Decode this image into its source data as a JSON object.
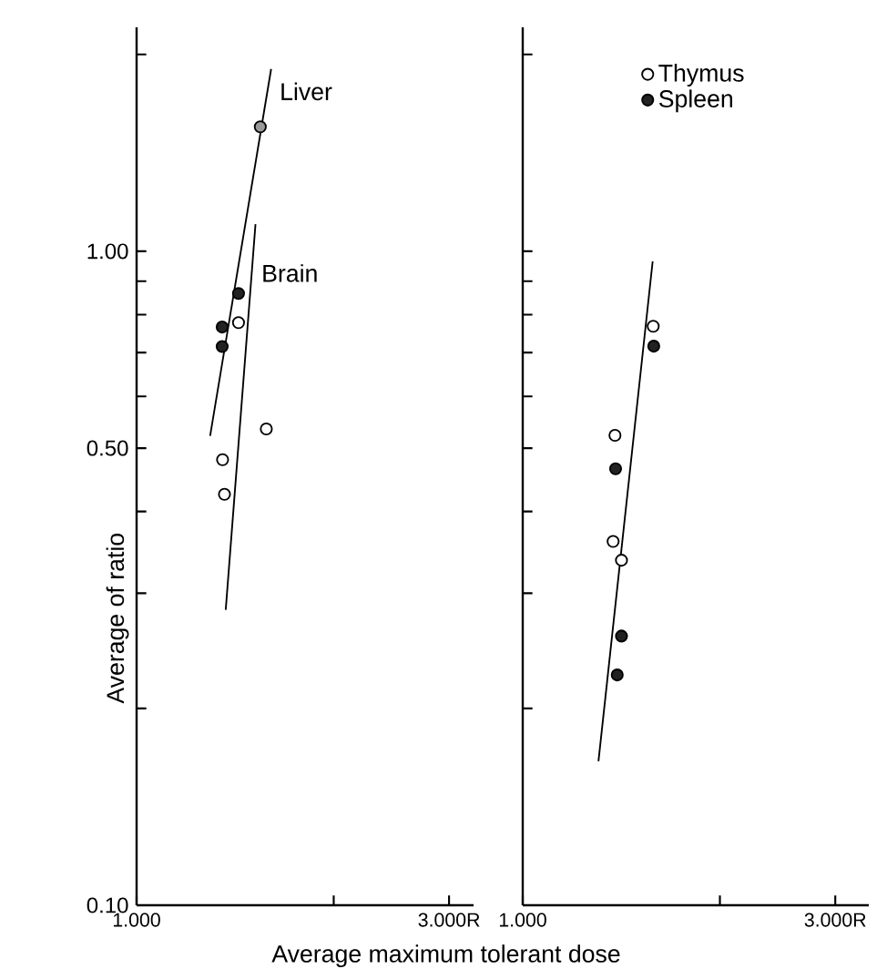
{
  "chart_data": [
    {
      "type": "scatter",
      "log": "xy",
      "xlabel": "Average maximum tolerant dose",
      "ylabel": "Average of ratio",
      "xlim": [
        1.0,
        3.27
      ],
      "ylim": [
        0.1,
        2.2
      ],
      "xticks": [
        {
          "value": 1,
          "label": "1.000"
        },
        {
          "value": 2,
          "label": null
        },
        {
          "value": 3,
          "label": "3.000R"
        }
      ],
      "yticks": [
        {
          "value": 0.1,
          "label": "0.10"
        },
        {
          "value": 0.2,
          "label": null
        },
        {
          "value": 0.3,
          "label": null
        },
        {
          "value": 0.4,
          "label": null
        },
        {
          "value": 0.5,
          "label": "0.50"
        },
        {
          "value": 0.6,
          "label": null
        },
        {
          "value": 0.7,
          "label": null
        },
        {
          "value": 0.8,
          "label": null
        },
        {
          "value": 0.9,
          "label": null
        },
        {
          "value": 1.0,
          "label": "1.00"
        },
        {
          "value": 2.0,
          "label": null
        }
      ],
      "series": [
        {
          "color": "#ffffff",
          "x": [
            1.431,
            1.578,
            1.353,
            1.362
          ],
          "values": [
            0.778,
            0.535,
            0.48,
            0.425
          ]
        },
        {
          "color": "#222222",
          "x": [
            1.431,
            1.351,
            1.351
          ],
          "values": [
            0.862,
            0.766,
            0.715
          ]
        },
        {
          "color": "#9a9a9a",
          "x": [
            1.545
          ],
          "values": [
            1.55
          ]
        },
        {
          "type": "line",
          "color": "#000000",
          "x": [
            1.295,
            1.605
          ],
          "values": [
            0.522,
            1.9
          ]
        },
        {
          "type": "line",
          "color": "#000000",
          "x": [
            1.368,
            1.519
          ],
          "values": [
            0.283,
            1.1
          ]
        }
      ],
      "annotations": [
        "Liver",
        "Brain"
      ]
    },
    {
      "type": "scatter",
      "log": "xy",
      "xlim": [
        1.0,
        3.375
      ],
      "ylim": [
        0.1,
        2.2
      ],
      "tick_labels": "x",
      "legend": "top",
      "xticks": [
        {
          "value": 1,
          "label": "1.000"
        },
        {
          "value": 2,
          "label": null
        },
        {
          "value": 3,
          "label": "3.000R"
        }
      ],
      "yticks": [
        {
          "value": 0.1,
          "label": null
        },
        {
          "value": 0.2,
          "label": null
        },
        {
          "value": 0.3,
          "label": null
        },
        {
          "value": 0.4,
          "label": null
        },
        {
          "value": 0.5,
          "label": null
        },
        {
          "value": 0.6,
          "label": null
        },
        {
          "value": 0.7,
          "label": null
        },
        {
          "value": 0.8,
          "label": null
        },
        {
          "value": 0.9,
          "label": null
        },
        {
          "value": 1.0,
          "label": null
        },
        {
          "value": 2.0,
          "label": null
        }
      ],
      "series": [
        {
          "name": "Thymus",
          "color": "#ffffff",
          "x": [
            1.582,
            1.383,
            1.374,
            1.415
          ],
          "values": [
            0.768,
            0.523,
            0.36,
            0.337
          ]
        },
        {
          "name": "Spleen",
          "color": "#222222",
          "x": [
            1.585,
            1.386,
            1.415,
            1.394
          ],
          "values": [
            0.716,
            0.465,
            0.258,
            0.225
          ]
        },
        {
          "type": "line",
          "color": "#000000",
          "x": [
            1.305,
            1.579
          ],
          "values": [
            0.166,
            0.965
          ]
        }
      ]
    }
  ]
}
